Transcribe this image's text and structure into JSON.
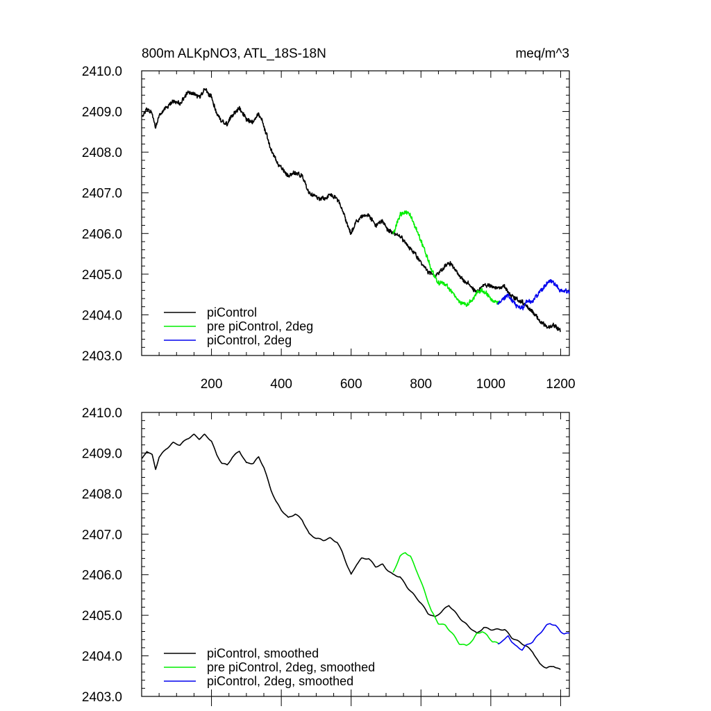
{
  "header": {
    "left_title": "800m ALKpNO3, ATL_18S-18N",
    "right_title": "meq/m^3"
  },
  "colors": {
    "piControl": "#000000",
    "pre": "#00ee00",
    "blue": "#0000ee"
  },
  "chart_data": [
    {
      "type": "line",
      "xlim": [
        0,
        1225
      ],
      "ylim": [
        2403.0,
        2410.0
      ],
      "yticks": [
        "2410.0",
        "2409.0",
        "2408.0",
        "2407.0",
        "2406.0",
        "2405.0",
        "2404.0",
        "2403.0"
      ],
      "xticks": [
        "200",
        "400",
        "600",
        "800",
        "1000",
        "1200"
      ],
      "grid": false,
      "legend_position": "bottom-left",
      "series": [
        {
          "name": "piControl",
          "color": "#000000",
          "x_range": [
            1,
            1200
          ],
          "anchors": [
            [
              1,
              2408.85
            ],
            [
              15,
              2409.05
            ],
            [
              30,
              2408.95
            ],
            [
              40,
              2408.6
            ],
            [
              50,
              2408.9
            ],
            [
              70,
              2409.1
            ],
            [
              90,
              2409.25
            ],
            [
              110,
              2409.2
            ],
            [
              130,
              2409.45
            ],
            [
              150,
              2409.45
            ],
            [
              165,
              2409.35
            ],
            [
              180,
              2409.55
            ],
            [
              200,
              2409.35
            ],
            [
              215,
              2408.95
            ],
            [
              230,
              2408.75
            ],
            [
              245,
              2408.7
            ],
            [
              260,
              2408.9
            ],
            [
              280,
              2409.1
            ],
            [
              300,
              2408.8
            ],
            [
              320,
              2408.75
            ],
            [
              335,
              2408.95
            ],
            [
              350,
              2408.65
            ],
            [
              370,
              2408.1
            ],
            [
              385,
              2407.8
            ],
            [
              400,
              2407.6
            ],
            [
              420,
              2407.4
            ],
            [
              440,
              2407.5
            ],
            [
              460,
              2407.4
            ],
            [
              480,
              2407.0
            ],
            [
              500,
              2406.9
            ],
            [
              520,
              2406.85
            ],
            [
              540,
              2406.95
            ],
            [
              560,
              2406.85
            ],
            [
              575,
              2406.6
            ],
            [
              590,
              2406.2
            ],
            [
              600,
              2406.0
            ],
            [
              615,
              2406.3
            ],
            [
              630,
              2406.4
            ],
            [
              650,
              2406.45
            ],
            [
              670,
              2406.2
            ],
            [
              690,
              2406.3
            ],
            [
              700,
              2406.15
            ],
            [
              720,
              2406.0
            ],
            [
              740,
              2405.95
            ],
            [
              760,
              2405.7
            ],
            [
              780,
              2405.55
            ],
            [
              800,
              2405.3
            ],
            [
              820,
              2405.05
            ],
            [
              840,
              2404.95
            ],
            [
              860,
              2405.1
            ],
            [
              880,
              2405.3
            ],
            [
              900,
              2405.1
            ],
            [
              920,
              2404.85
            ],
            [
              940,
              2404.75
            ],
            [
              960,
              2404.55
            ],
            [
              980,
              2404.75
            ],
            [
              1000,
              2404.7
            ],
            [
              1020,
              2404.65
            ],
            [
              1040,
              2404.7
            ],
            [
              1060,
              2404.45
            ],
            [
              1080,
              2404.35
            ],
            [
              1100,
              2404.25
            ],
            [
              1120,
              2404.1
            ],
            [
              1140,
              2403.85
            ],
            [
              1160,
              2403.7
            ],
            [
              1180,
              2403.75
            ],
            [
              1200,
              2403.6
            ]
          ]
        },
        {
          "name": "pre piControl, 2deg",
          "color": "#00ee00",
          "x_range": [
            720,
            1025
          ],
          "anchors": [
            [
              720,
              2406.0
            ],
            [
              730,
              2406.2
            ],
            [
              740,
              2406.45
            ],
            [
              755,
              2406.55
            ],
            [
              770,
              2406.45
            ],
            [
              790,
              2406.05
            ],
            [
              810,
              2405.6
            ],
            [
              830,
              2405.1
            ],
            [
              850,
              2404.8
            ],
            [
              870,
              2404.75
            ],
            [
              890,
              2404.55
            ],
            [
              910,
              2404.3
            ],
            [
              930,
              2404.25
            ],
            [
              950,
              2404.4
            ],
            [
              960,
              2404.55
            ],
            [
              975,
              2404.6
            ],
            [
              990,
              2404.5
            ],
            [
              1005,
              2404.35
            ],
            [
              1025,
              2404.3
            ]
          ]
        },
        {
          "name": "piControl, 2deg",
          "color": "#0000ee",
          "x_range": [
            1020,
            1225
          ],
          "anchors": [
            [
              1020,
              2404.3
            ],
            [
              1040,
              2404.4
            ],
            [
              1050,
              2404.5
            ],
            [
              1060,
              2404.35
            ],
            [
              1070,
              2404.25
            ],
            [
              1090,
              2404.15
            ],
            [
              1100,
              2404.3
            ],
            [
              1120,
              2404.35
            ],
            [
              1140,
              2404.55
            ],
            [
              1160,
              2404.75
            ],
            [
              1170,
              2404.85
            ],
            [
              1185,
              2404.75
            ],
            [
              1200,
              2404.6
            ],
            [
              1210,
              2404.6
            ],
            [
              1225,
              2404.55
            ]
          ]
        }
      ]
    },
    {
      "type": "line",
      "xlim": [
        0,
        1225
      ],
      "ylim": [
        2403.0,
        2410.0
      ],
      "yticks": [
        "2410.0",
        "2409.0",
        "2408.0",
        "2407.0",
        "2406.0",
        "2405.0",
        "2404.0",
        "2403.0"
      ],
      "xticks": [],
      "grid": false,
      "legend_position": "bottom-left",
      "series": [
        {
          "name": "piControl, smoothed",
          "color": "#000000",
          "x_range": [
            1,
            1200
          ],
          "anchors": [
            [
              1,
              2408.85
            ],
            [
              15,
              2409.05
            ],
            [
              30,
              2408.95
            ],
            [
              40,
              2408.6
            ],
            [
              50,
              2408.9
            ],
            [
              70,
              2409.1
            ],
            [
              90,
              2409.25
            ],
            [
              110,
              2409.2
            ],
            [
              130,
              2409.35
            ],
            [
              150,
              2409.45
            ],
            [
              165,
              2409.35
            ],
            [
              180,
              2409.45
            ],
            [
              200,
              2409.3
            ],
            [
              215,
              2408.95
            ],
            [
              230,
              2408.75
            ],
            [
              245,
              2408.7
            ],
            [
              260,
              2408.9
            ],
            [
              280,
              2409.05
            ],
            [
              300,
              2408.75
            ],
            [
              320,
              2408.75
            ],
            [
              335,
              2408.9
            ],
            [
              350,
              2408.65
            ],
            [
              370,
              2408.1
            ],
            [
              385,
              2407.8
            ],
            [
              400,
              2407.6
            ],
            [
              420,
              2407.4
            ],
            [
              440,
              2407.5
            ],
            [
              460,
              2407.35
            ],
            [
              480,
              2407.0
            ],
            [
              500,
              2406.9
            ],
            [
              520,
              2406.85
            ],
            [
              540,
              2406.9
            ],
            [
              560,
              2406.8
            ],
            [
              575,
              2406.55
            ],
            [
              590,
              2406.2
            ],
            [
              600,
              2406.0
            ],
            [
              615,
              2406.25
            ],
            [
              630,
              2406.4
            ],
            [
              650,
              2406.4
            ],
            [
              670,
              2406.2
            ],
            [
              690,
              2406.25
            ],
            [
              700,
              2406.15
            ],
            [
              720,
              2406.0
            ],
            [
              740,
              2405.95
            ],
            [
              760,
              2405.7
            ],
            [
              780,
              2405.5
            ],
            [
              800,
              2405.3
            ],
            [
              820,
              2405.05
            ],
            [
              840,
              2404.95
            ],
            [
              860,
              2405.1
            ],
            [
              880,
              2405.25
            ],
            [
              900,
              2405.05
            ],
            [
              920,
              2404.85
            ],
            [
              940,
              2404.7
            ],
            [
              960,
              2404.55
            ],
            [
              980,
              2404.7
            ],
            [
              1000,
              2404.65
            ],
            [
              1020,
              2404.65
            ],
            [
              1040,
              2404.65
            ],
            [
              1060,
              2404.45
            ],
            [
              1080,
              2404.35
            ],
            [
              1100,
              2404.25
            ],
            [
              1120,
              2404.1
            ],
            [
              1140,
              2403.8
            ],
            [
              1160,
              2403.7
            ],
            [
              1180,
              2403.75
            ],
            [
              1200,
              2403.65
            ]
          ]
        },
        {
          "name": "pre piControl, 2deg, smoothed",
          "color": "#00ee00",
          "x_range": [
            720,
            1025
          ],
          "anchors": [
            [
              720,
              2406.05
            ],
            [
              730,
              2406.25
            ],
            [
              740,
              2406.45
            ],
            [
              755,
              2406.55
            ],
            [
              770,
              2406.45
            ],
            [
              790,
              2406.05
            ],
            [
              810,
              2405.6
            ],
            [
              830,
              2405.1
            ],
            [
              850,
              2404.8
            ],
            [
              870,
              2404.75
            ],
            [
              890,
              2404.55
            ],
            [
              910,
              2404.3
            ],
            [
              930,
              2404.25
            ],
            [
              950,
              2404.4
            ],
            [
              960,
              2404.55
            ],
            [
              975,
              2404.6
            ],
            [
              990,
              2404.5
            ],
            [
              1005,
              2404.35
            ],
            [
              1025,
              2404.3
            ]
          ]
        },
        {
          "name": "piControl, 2deg, smoothed",
          "color": "#0000ee",
          "x_range": [
            1020,
            1225
          ],
          "anchors": [
            [
              1020,
              2404.3
            ],
            [
              1040,
              2404.4
            ],
            [
              1050,
              2404.5
            ],
            [
              1060,
              2404.35
            ],
            [
              1070,
              2404.25
            ],
            [
              1090,
              2404.15
            ],
            [
              1100,
              2404.25
            ],
            [
              1120,
              2404.35
            ],
            [
              1140,
              2404.55
            ],
            [
              1160,
              2404.75
            ],
            [
              1170,
              2404.8
            ],
            [
              1185,
              2404.75
            ],
            [
              1200,
              2404.6
            ],
            [
              1210,
              2404.55
            ],
            [
              1225,
              2404.55
            ]
          ]
        }
      ]
    }
  ]
}
